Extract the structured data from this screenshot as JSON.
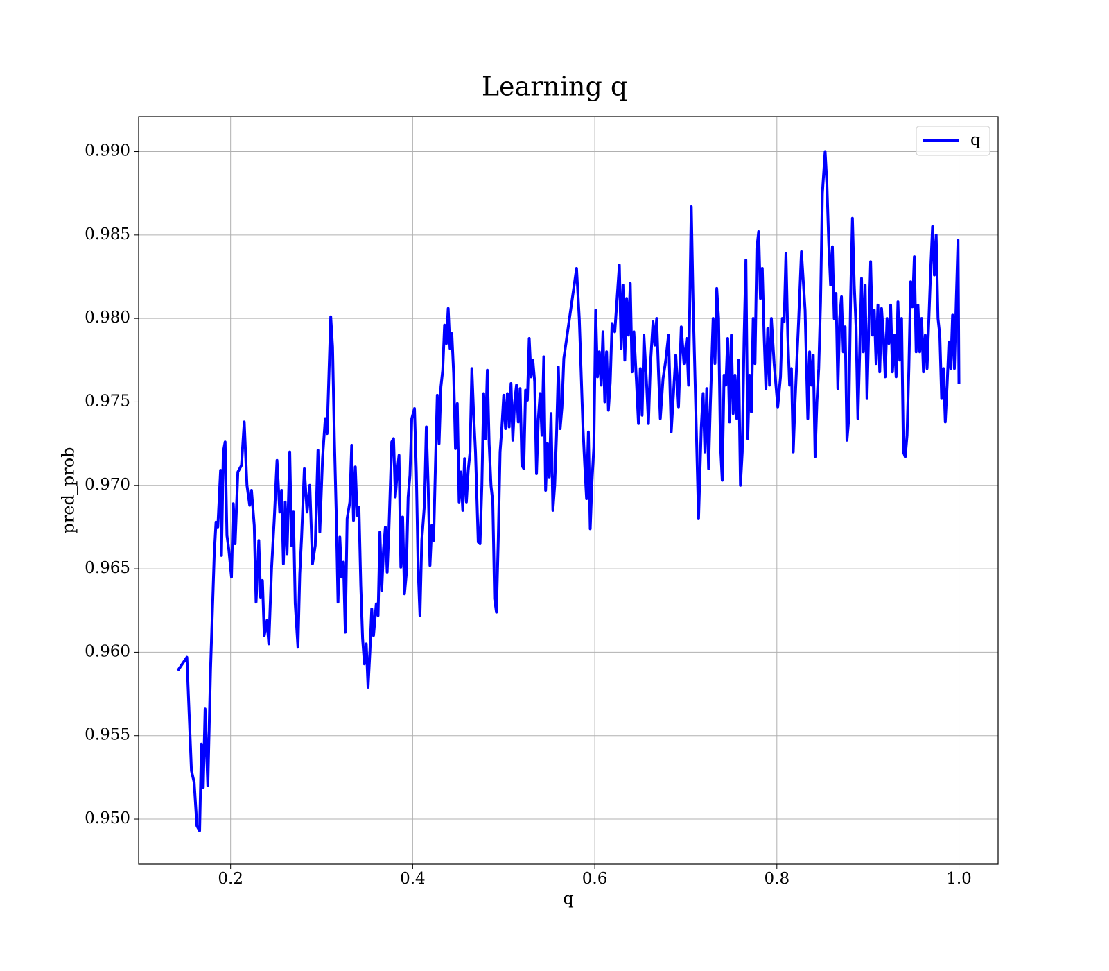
{
  "chart_data": {
    "type": "line",
    "title": "Learning q",
    "xlabel": "q",
    "ylabel": "pred_prob",
    "xlim": [
      0.099,
      1.043
    ],
    "ylim": [
      0.9473,
      0.9921
    ],
    "xticks": [
      0.2,
      0.4,
      0.6,
      0.8,
      {
        "value": 1,
        "label": "1.0"
      }
    ],
    "yticks": [
      {
        "value": 0.95,
        "label": "0.950"
      },
      0.955,
      {
        "value": 0.96,
        "label": "0.960"
      },
      0.965,
      {
        "value": 0.97,
        "label": "0.970"
      },
      0.975,
      {
        "value": 0.98,
        "label": "0.980"
      },
      0.985,
      {
        "value": 0.99,
        "label": "0.990"
      }
    ],
    "grid": true,
    "legend": "upper right",
    "x": [
      0.142,
      0.152,
      0.157,
      0.16,
      0.163,
      0.166,
      0.168,
      0.17,
      0.172,
      0.175,
      0.178,
      0.182,
      0.184,
      0.186,
      0.189,
      0.19,
      0.192,
      0.194,
      0.196,
      0.198,
      0.201,
      0.203,
      0.205,
      0.208,
      0.212,
      0.215,
      0.218,
      0.221,
      0.223,
      0.226,
      0.228,
      0.231,
      0.233,
      0.235,
      0.237,
      0.24,
      0.242,
      0.245,
      0.248,
      0.251,
      0.254,
      0.256,
      0.258,
      0.26,
      0.262,
      0.265,
      0.267,
      0.269,
      0.271,
      0.274,
      0.276,
      0.278,
      0.281,
      0.284,
      0.287,
      0.29,
      0.293,
      0.296,
      0.298,
      0.301,
      0.304,
      0.306,
      0.31,
      0.312,
      0.314,
      0.316,
      0.318,
      0.32,
      0.322,
      0.324,
      0.326,
      0.328,
      0.331,
      0.333,
      0.335,
      0.337,
      0.339,
      0.341,
      0.343,
      0.345,
      0.347,
      0.349,
      0.351,
      0.353,
      0.355,
      0.357,
      0.36,
      0.362,
      0.364,
      0.366,
      0.368,
      0.37,
      0.372,
      0.374,
      0.377,
      0.379,
      0.381,
      0.383,
      0.385,
      0.387,
      0.389,
      0.391,
      0.393,
      0.395,
      0.397,
      0.399,
      0.402,
      0.404,
      0.406,
      0.408,
      0.41,
      0.413,
      0.415,
      0.417,
      0.419,
      0.421,
      0.423,
      0.425,
      0.427,
      0.429,
      0.431,
      0.433,
      0.435,
      0.437,
      0.439,
      0.441,
      0.443,
      0.445,
      0.447,
      0.449,
      0.451,
      0.453,
      0.455,
      0.457,
      0.459,
      0.461,
      0.463,
      0.465,
      0.467,
      0.469,
      0.472,
      0.474,
      0.476,
      0.478,
      0.48,
      0.482,
      0.484,
      0.486,
      0.488,
      0.49,
      0.492,
      0.494,
      0.496,
      0.498,
      0.5,
      0.502,
      0.504,
      0.506,
      0.508,
      0.51,
      0.512,
      0.514,
      0.516,
      0.518,
      0.52,
      0.522,
      0.524,
      0.526,
      0.528,
      0.53,
      0.532,
      0.534,
      0.536,
      0.538,
      0.54,
      0.542,
      0.544,
      0.546,
      0.548,
      0.55,
      0.552,
      0.554,
      0.556,
      0.558,
      0.56,
      0.562,
      0.564,
      0.566,
      0.58,
      0.583,
      0.585,
      0.587,
      0.589,
      0.591,
      0.593,
      0.595,
      0.597,
      0.599,
      0.601,
      0.603,
      0.605,
      0.607,
      0.609,
      0.611,
      0.613,
      0.615,
      0.617,
      0.619,
      0.622,
      0.627,
      0.629,
      0.631,
      0.633,
      0.635,
      0.637,
      0.639,
      0.641,
      0.643,
      0.646,
      0.648,
      0.65,
      0.652,
      0.654,
      0.657,
      0.659,
      0.661,
      0.664,
      0.666,
      0.668,
      0.67,
      0.672,
      0.675,
      0.678,
      0.681,
      0.684,
      0.687,
      0.689,
      0.692,
      0.695,
      0.698,
      0.701,
      0.703,
      0.706,
      0.708,
      0.711,
      0.714,
      0.717,
      0.719,
      0.721,
      0.723,
      0.725,
      0.727,
      0.73,
      0.732,
      0.734,
      0.736,
      0.738,
      0.74,
      0.742,
      0.744,
      0.746,
      0.748,
      0.75,
      0.752,
      0.754,
      0.756,
      0.758,
      0.76,
      0.762,
      0.764,
      0.766,
      0.768,
      0.77,
      0.772,
      0.774,
      0.776,
      0.778,
      0.78,
      0.782,
      0.784,
      0.786,
      0.788,
      0.79,
      0.792,
      0.794,
      0.797,
      0.799,
      0.801,
      0.804,
      0.806,
      0.808,
      0.81,
      0.812,
      0.814,
      0.816,
      0.818,
      0.82,
      0.822,
      0.824,
      0.827,
      0.831,
      0.834,
      0.836,
      0.838,
      0.84,
      0.842,
      0.844,
      0.846,
      0.848,
      0.85,
      0.853,
      0.855,
      0.857,
      0.859,
      0.861,
      0.863,
      0.865,
      0.867,
      0.869,
      0.871,
      0.873,
      0.875,
      0.877,
      0.879,
      0.881,
      0.883,
      0.885,
      0.887,
      0.889,
      0.891,
      0.893,
      0.895,
      0.897,
      0.899,
      0.901,
      0.903,
      0.905,
      0.907,
      0.909,
      0.911,
      0.913,
      0.915,
      0.917,
      0.919,
      0.921,
      0.923,
      0.925,
      0.927,
      0.929,
      0.931,
      0.933,
      0.935,
      0.937,
      0.939,
      0.941,
      0.943,
      0.945,
      0.947,
      0.949,
      0.951,
      0.953,
      0.955,
      0.957,
      0.959,
      0.961,
      0.963,
      0.965,
      0.967,
      0.969,
      0.971,
      0.973,
      0.975,
      0.977,
      0.979,
      0.981,
      0.983,
      0.985,
      0.987,
      0.989,
      0.991,
      0.993,
      0.995,
      0.997,
      0.999,
      1.0
    ],
    "series": [
      {
        "name": "q",
        "color": "#0000ff",
        "values": [
          0.9589,
          0.9597,
          0.9529,
          0.9522,
          0.9496,
          0.9493,
          0.9545,
          0.9519,
          0.9566,
          0.952,
          0.959,
          0.9658,
          0.9678,
          0.9675,
          0.9709,
          0.9658,
          0.972,
          0.9726,
          0.967,
          0.9662,
          0.9645,
          0.9689,
          0.9665,
          0.9708,
          0.9712,
          0.9738,
          0.97,
          0.9688,
          0.9697,
          0.9676,
          0.963,
          0.9667,
          0.9633,
          0.9643,
          0.961,
          0.9619,
          0.9605,
          0.965,
          0.968,
          0.9715,
          0.9684,
          0.9697,
          0.9653,
          0.969,
          0.9659,
          0.972,
          0.9664,
          0.9684,
          0.9629,
          0.9603,
          0.9647,
          0.9669,
          0.971,
          0.9684,
          0.97,
          0.9653,
          0.9664,
          0.9721,
          0.9672,
          0.9716,
          0.974,
          0.9731,
          0.9801,
          0.9783,
          0.9728,
          0.9684,
          0.963,
          0.9669,
          0.9645,
          0.9654,
          0.9612,
          0.968,
          0.969,
          0.9724,
          0.9679,
          0.9711,
          0.9682,
          0.9687,
          0.964,
          0.9608,
          0.9593,
          0.9605,
          0.9579,
          0.96,
          0.9626,
          0.961,
          0.9629,
          0.9622,
          0.9672,
          0.9637,
          0.9662,
          0.9675,
          0.9648,
          0.9675,
          0.9726,
          0.9728,
          0.9693,
          0.9708,
          0.9718,
          0.9651,
          0.9681,
          0.9635,
          0.9647,
          0.9693,
          0.9706,
          0.974,
          0.9746,
          0.9708,
          0.965,
          0.9622,
          0.9667,
          0.9689,
          0.9735,
          0.97,
          0.9652,
          0.9676,
          0.9667,
          0.9712,
          0.9754,
          0.9725,
          0.9759,
          0.9769,
          0.9796,
          0.9785,
          0.9806,
          0.9782,
          0.9791,
          0.9767,
          0.9722,
          0.9749,
          0.969,
          0.9708,
          0.9685,
          0.9716,
          0.969,
          0.9709,
          0.972,
          0.977,
          0.9742,
          0.972,
          0.9666,
          0.9665,
          0.97,
          0.9755,
          0.9728,
          0.9769,
          0.9725,
          0.97,
          0.969,
          0.9632,
          0.9624,
          0.9667,
          0.972,
          0.9735,
          0.9754,
          0.9734,
          0.9755,
          0.9735,
          0.9761,
          0.9727,
          0.975,
          0.976,
          0.9738,
          0.9758,
          0.9712,
          0.971,
          0.9757,
          0.9751,
          0.9788,
          0.9765,
          0.9775,
          0.9762,
          0.9707,
          0.974,
          0.9755,
          0.973,
          0.9777,
          0.9697,
          0.9725,
          0.9705,
          0.9743,
          0.9685,
          0.97,
          0.973,
          0.9771,
          0.9734,
          0.9747,
          0.9776,
          0.983,
          0.98,
          0.9768,
          0.9735,
          0.9712,
          0.9692,
          0.9732,
          0.9674,
          0.9703,
          0.9723,
          0.9805,
          0.9765,
          0.978,
          0.976,
          0.9792,
          0.975,
          0.978,
          0.9745,
          0.9762,
          0.9797,
          0.9792,
          0.9832,
          0.9782,
          0.982,
          0.9775,
          0.9812,
          0.979,
          0.9821,
          0.9768,
          0.9792,
          0.976,
          0.9737,
          0.977,
          0.9742,
          0.979,
          0.976,
          0.9737,
          0.9771,
          0.9798,
          0.9784,
          0.98,
          0.9768,
          0.974,
          0.9764,
          0.9775,
          0.979,
          0.9732,
          0.976,
          0.9778,
          0.9747,
          0.9795,
          0.9773,
          0.9788,
          0.976,
          0.9867,
          0.981,
          0.9745,
          0.968,
          0.9735,
          0.9755,
          0.972,
          0.9758,
          0.971,
          0.9749,
          0.98,
          0.9773,
          0.9818,
          0.98,
          0.9725,
          0.9703,
          0.9766,
          0.976,
          0.9788,
          0.9738,
          0.979,
          0.9743,
          0.9766,
          0.974,
          0.9775,
          0.97,
          0.972,
          0.9788,
          0.9835,
          0.9728,
          0.9766,
          0.9744,
          0.98,
          0.9773,
          0.9842,
          0.9852,
          0.9812,
          0.983,
          0.979,
          0.9758,
          0.9794,
          0.976,
          0.98,
          0.9773,
          0.976,
          0.9747,
          0.9765,
          0.98,
          0.9798,
          0.9839,
          0.979,
          0.976,
          0.977,
          0.972,
          0.975,
          0.9775,
          0.98,
          0.984,
          0.9805,
          0.974,
          0.978,
          0.976,
          0.9778,
          0.9717,
          0.975,
          0.977,
          0.981,
          0.9875,
          0.99,
          0.988,
          0.9845,
          0.982,
          0.9843,
          0.98,
          0.9815,
          0.9758,
          0.98,
          0.9813,
          0.978,
          0.9795,
          0.9727,
          0.974,
          0.9812,
          0.986,
          0.982,
          0.9795,
          0.974,
          0.978,
          0.9824,
          0.978,
          0.982,
          0.9752,
          0.9795,
          0.9834,
          0.979,
          0.9805,
          0.9773,
          0.9808,
          0.9768,
          0.9806,
          0.979,
          0.9765,
          0.98,
          0.9785,
          0.9808,
          0.9768,
          0.979,
          0.9765,
          0.981,
          0.9775,
          0.98,
          0.972,
          0.9717,
          0.973,
          0.977,
          0.9822,
          0.9807,
          0.9837,
          0.978,
          0.9808,
          0.978,
          0.98,
          0.9768,
          0.979,
          0.977,
          0.98,
          0.983,
          0.9855,
          0.9826,
          0.985,
          0.98,
          0.979,
          0.9752,
          0.977,
          0.9738,
          0.976,
          0.9786,
          0.977,
          0.9802,
          0.977,
          0.981,
          0.9847,
          0.9761
        ]
      }
    ]
  }
}
